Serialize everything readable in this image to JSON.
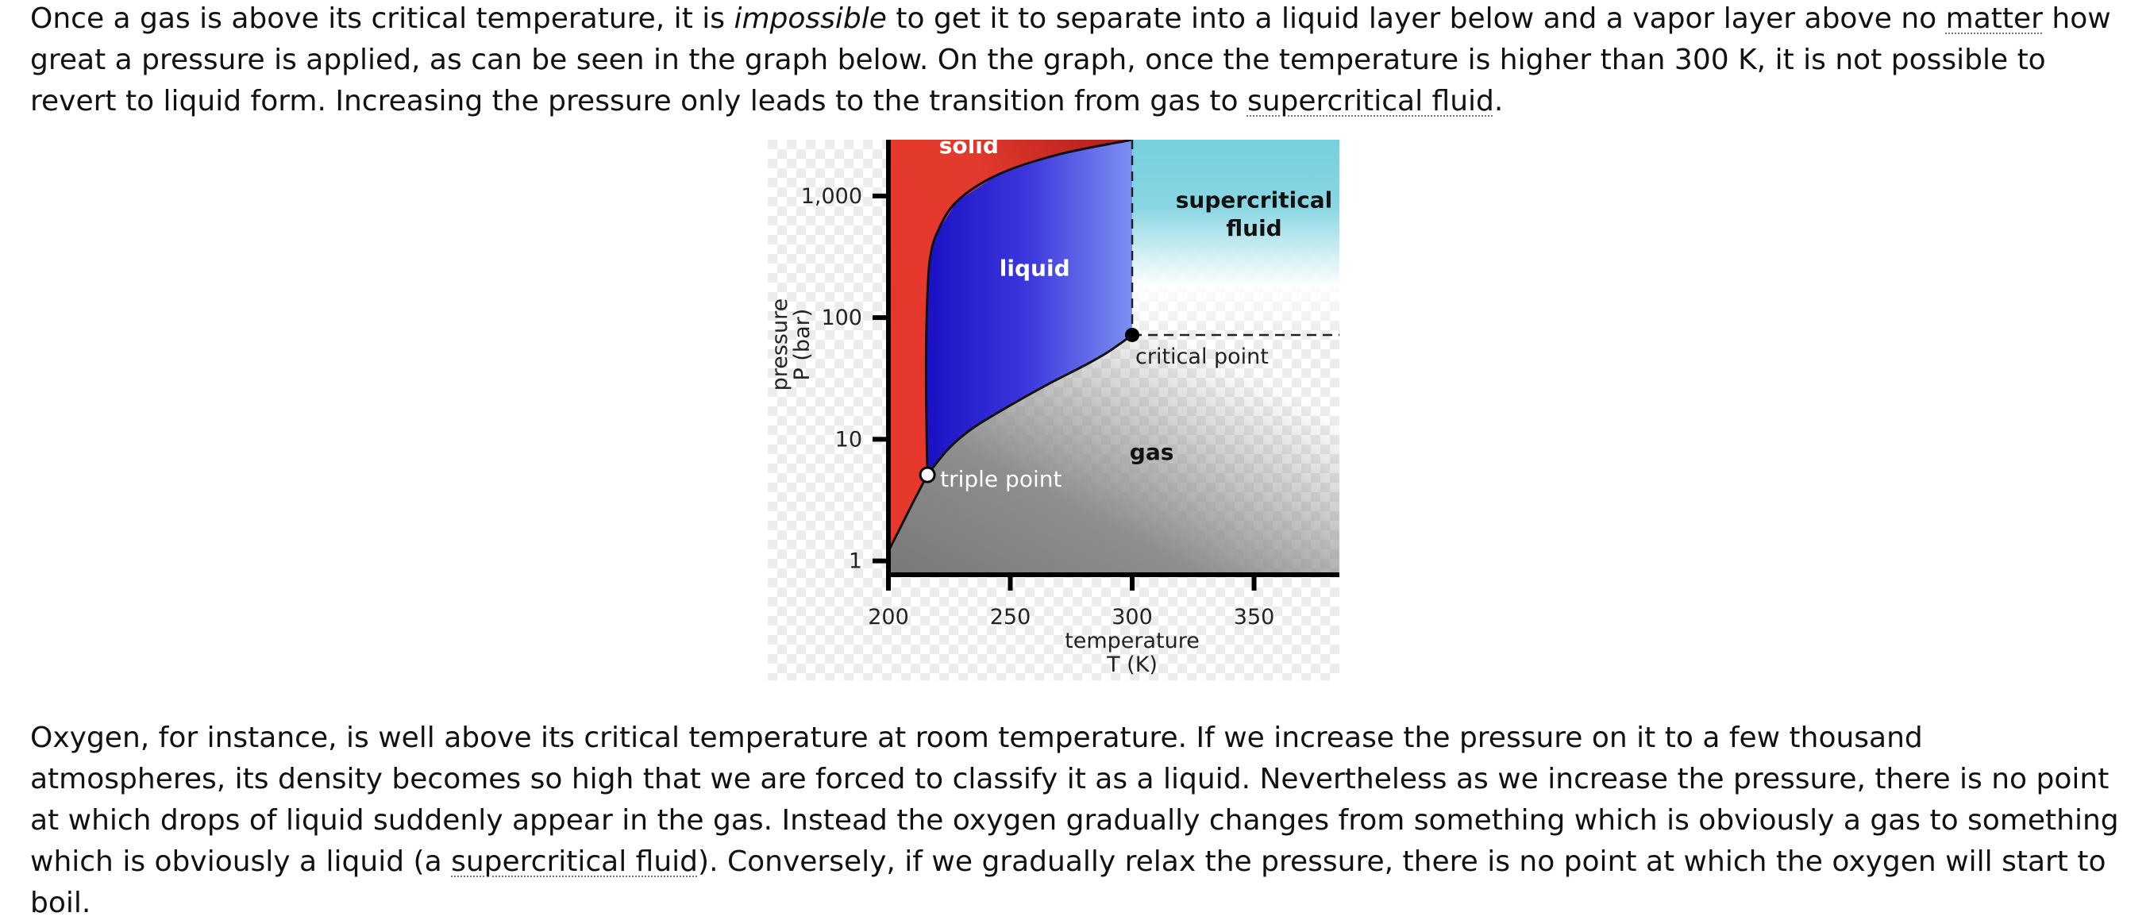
{
  "article": {
    "p1": {
      "t1": "Once a gas is above its critical temperature, it is ",
      "em": "impossible",
      "t2": " to get it to separate into a liquid layer below and a vapor layer above no ",
      "link1": "matter",
      "t3": " how great a pressure is applied, as can be seen in the graph below. On the graph, once the temperature is higher than 300 K, it is not possible to revert to liquid form. Increasing the pressure only leads to the transition from gas to ",
      "link2": "supercritical fluid",
      "t4": "."
    },
    "p2": {
      "t1": "Oxygen, for instance, is well above its critical temperature at room temperature. If we increase the pressure on it to a few thousand atmospheres, its density becomes so high that we are forced to classify it as a liquid. Nevertheless as we increase the pressure, there is no point at which drops of liquid suddenly appear in the gas. Instead the oxygen gradually changes from something which is obviously a gas to something which is obviously a liquid (a ",
      "link": "supercritical fluid",
      "t2": "). Conversely, if we gradually relax the pressure, there is no point at which the oxygen will start to boil."
    }
  },
  "chart_data": {
    "type": "area",
    "title": "",
    "xlabel": [
      "temperature",
      "T (K)"
    ],
    "ylabel": [
      "pressure",
      "P (bar)"
    ],
    "xticks": [
      200,
      250,
      300,
      350
    ],
    "yticks": [
      {
        "value": 1,
        "label": "1"
      },
      {
        "value": 10,
        "label": "10"
      },
      {
        "value": 100,
        "label": "100"
      },
      {
        "value": 1000,
        "label": "1,000"
      }
    ],
    "xlim": [
      200,
      385
    ],
    "ylim": [
      0.77,
      2900
    ],
    "yscale": "log",
    "regions": [
      {
        "name": "solid",
        "label": "solid",
        "color": "#e8372c"
      },
      {
        "name": "liquid",
        "label": "liquid",
        "color": "#2a1fd0"
      },
      {
        "name": "gas",
        "label": "gas",
        "color": "#8c8c8c"
      },
      {
        "name": "supercritical",
        "label": [
          "supercritical",
          "fluid"
        ],
        "color": "#76cfdd"
      }
    ],
    "points": [
      {
        "name": "triple",
        "label": "triple point",
        "x": 216,
        "y": 5.1
      },
      {
        "name": "critical",
        "label": "critical point",
        "x": 300,
        "y": 72
      }
    ],
    "curves": {
      "sublimation": [
        [
          200,
          1.2
        ],
        [
          205,
          1.9
        ],
        [
          210,
          3.0
        ],
        [
          216,
          5.1
        ]
      ],
      "fusion": [
        [
          216,
          5.1
        ],
        [
          215.5,
          20
        ],
        [
          215.5,
          60
        ],
        [
          216,
          150
        ],
        [
          217,
          300
        ],
        [
          220,
          500
        ],
        [
          228,
          900
        ],
        [
          245,
          1500
        ],
        [
          270,
          2200
        ],
        [
          300,
          2900
        ]
      ],
      "vaporization": [
        [
          216,
          5.1
        ],
        [
          225,
          8.5
        ],
        [
          235,
          12.5
        ],
        [
          250,
          19
        ],
        [
          265,
          28
        ],
        [
          280,
          40
        ],
        [
          290,
          52
        ],
        [
          300,
          72
        ]
      ]
    }
  }
}
